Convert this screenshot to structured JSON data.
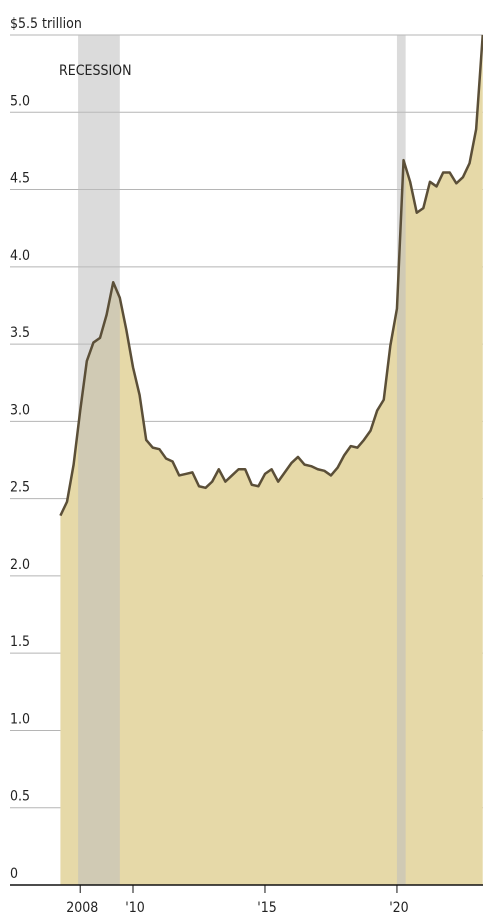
{
  "chart_data": {
    "type": "area",
    "annotations": [
      "RECESSION"
    ],
    "recessions": [
      {
        "start": 2007.92,
        "end": 2009.5
      },
      {
        "start": 2020.0,
        "end": 2020.33
      }
    ],
    "x": [
      2007.25,
      2007.5,
      2007.75,
      2008.0,
      2008.25,
      2008.5,
      2008.75,
      2009.0,
      2009.25,
      2009.5,
      2009.75,
      2010.0,
      2010.25,
      2010.5,
      2010.75,
      2011.0,
      2011.25,
      2011.5,
      2011.75,
      2012.0,
      2012.25,
      2012.5,
      2012.75,
      2013.0,
      2013.25,
      2013.5,
      2013.75,
      2014.0,
      2014.25,
      2014.5,
      2014.75,
      2015.0,
      2015.25,
      2015.5,
      2015.75,
      2016.0,
      2016.25,
      2016.5,
      2016.75,
      2017.0,
      2017.25,
      2017.5,
      2017.75,
      2018.0,
      2018.25,
      2018.5,
      2018.75,
      2019.0,
      2019.25,
      2019.5,
      2019.75,
      2020.0,
      2020.25,
      2020.5,
      2020.75,
      2021.0,
      2021.25,
      2021.5,
      2021.75,
      2022.0,
      2022.25,
      2022.5,
      2022.75,
      2023.0,
      2023.25
    ],
    "values": [
      2.39,
      2.48,
      2.72,
      3.07,
      3.39,
      3.51,
      3.54,
      3.69,
      3.9,
      3.8,
      3.59,
      3.35,
      3.17,
      2.88,
      2.83,
      2.82,
      2.76,
      2.74,
      2.65,
      2.66,
      2.67,
      2.58,
      2.57,
      2.61,
      2.69,
      2.61,
      2.65,
      2.69,
      2.69,
      2.59,
      2.58,
      2.66,
      2.69,
      2.61,
      2.67,
      2.73,
      2.77,
      2.72,
      2.71,
      2.69,
      2.68,
      2.65,
      2.7,
      2.78,
      2.84,
      2.83,
      2.88,
      2.94,
      3.07,
      3.14,
      3.49,
      3.73,
      4.69,
      4.55,
      4.35,
      4.38,
      4.55,
      4.52,
      4.61,
      4.61,
      4.54,
      4.58,
      4.67,
      4.89,
      5.5
    ],
    "color": "#e6d9a8",
    "line_color": "#5b4f38",
    "recession_color": "#bdbdbd",
    "xlim": [
      2005.34,
      2023.26
    ],
    "xticks": [
      2008,
      {
        "value": 2010,
        "label": "'10"
      },
      {
        "value": 2015,
        "label": "'15"
      },
      {
        "value": 2020,
        "label": "'20"
      }
    ],
    "ylim": [
      0,
      5.5
    ],
    "yticks": [
      0,
      0.5,
      {
        "value": 1,
        "label": "1.0"
      },
      1.5,
      {
        "value": 2,
        "label": "2.0"
      },
      2.5,
      {
        "value": 3,
        "label": "3.0"
      },
      3.5,
      {
        "value": 4,
        "label": "4.0"
      },
      4.5,
      {
        "value": 5,
        "label": "5.0"
      },
      {
        "value": 5.5,
        "label": "$5.5 trillion"
      }
    ],
    "grid": true
  }
}
